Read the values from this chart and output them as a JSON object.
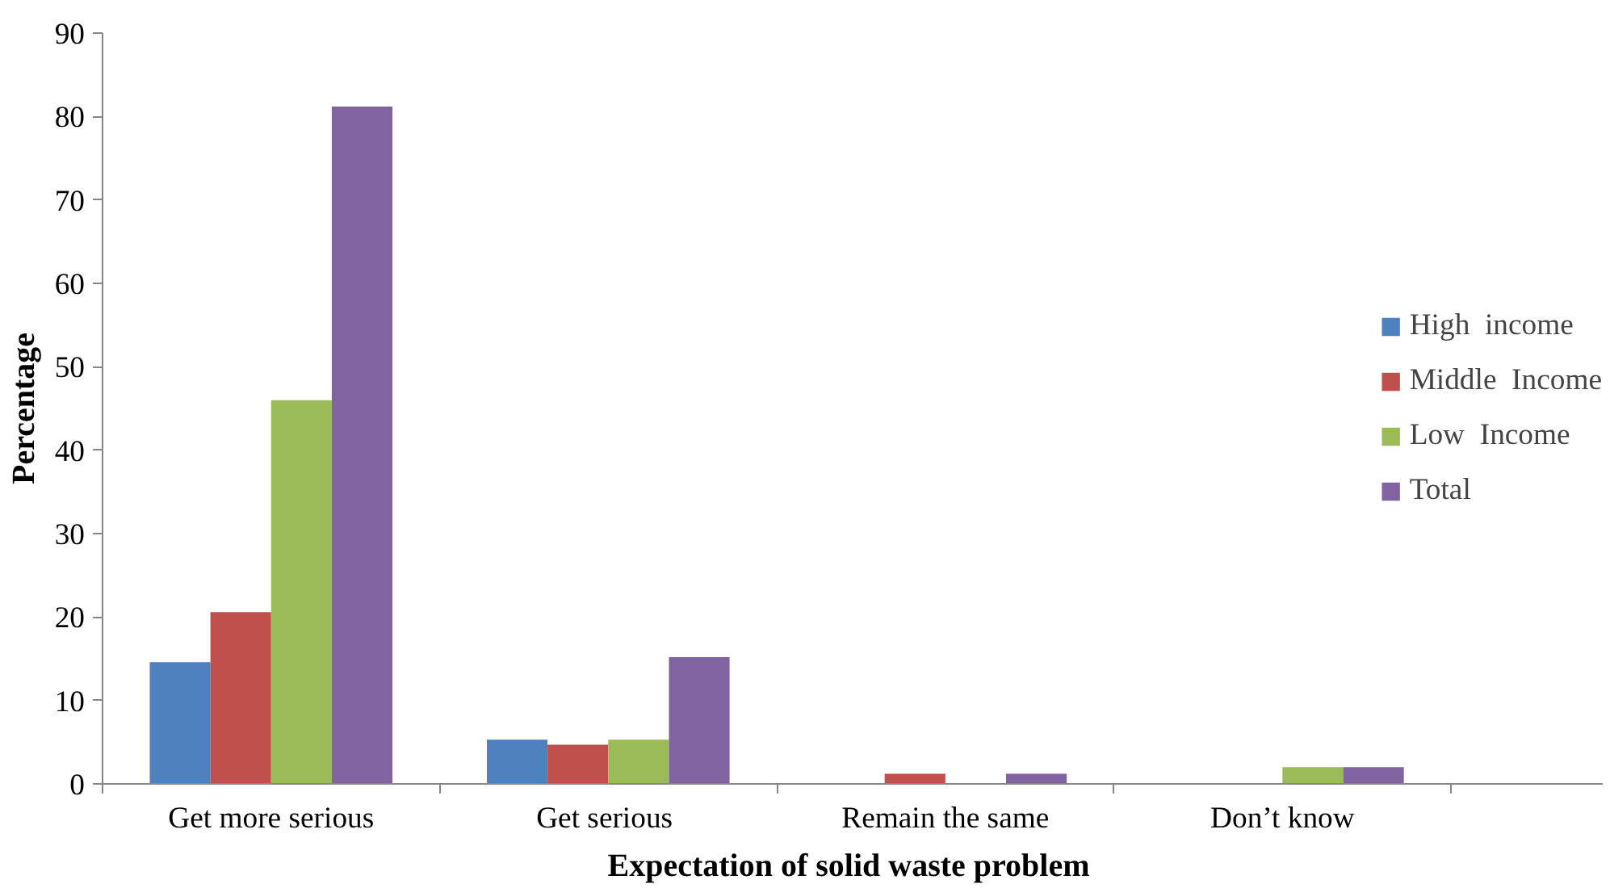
{
  "chart_data": {
    "type": "bar",
    "xlabel": "Expectation of  solid waste problem",
    "ylabel": "Percentage",
    "categories": [
      "Get more serious",
      "Get  serious",
      "Remain the same",
      "Don’t know"
    ],
    "series": [
      {
        "name": "High  income",
        "color": "#4f81bd",
        "values": [
          14.6,
          5.3,
          0,
          0
        ]
      },
      {
        "name": "Middle  Income",
        "color": "#c0504d",
        "values": [
          20.6,
          4.7,
          1.2,
          0
        ]
      },
      {
        "name": "Low  Income",
        "color": "#9bbb59",
        "values": [
          46,
          5.3,
          0,
          2
        ]
      },
      {
        "name": "Total",
        "color": "#8064a2",
        "values": [
          81.2,
          15.2,
          1.2,
          2
        ]
      }
    ],
    "ylim": [
      0,
      90
    ],
    "yticks": [
      0,
      10,
      20,
      30,
      40,
      50,
      60,
      70,
      80,
      90
    ],
    "grid": false,
    "legend": "right"
  }
}
